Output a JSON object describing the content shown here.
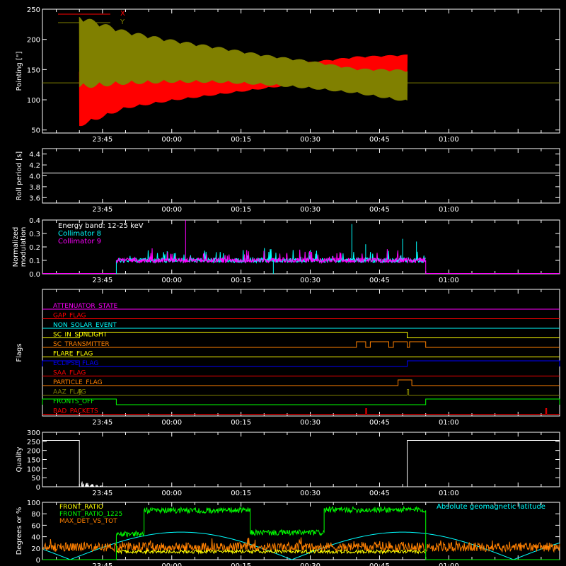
{
  "time_ticks": [
    "23:45",
    "00:00",
    "00:15",
    "00:30",
    "00:45",
    "01:00"
  ],
  "colors": {
    "axis": "#ffffff",
    "red": "#ff0000",
    "olive": "#808000",
    "cyan": "#00ffff",
    "magenta": "#ff00ff",
    "white": "#ffffff",
    "green": "#00ff00",
    "yellow": "#ffff00",
    "orange": "#ff8000",
    "blue": "#0000ff"
  },
  "chart_data": [
    {
      "id": "pointing",
      "type": "line",
      "ylabel": "Pointing [\"]",
      "ylim": [
        45,
        250
      ],
      "yticks": [
        "50",
        "100",
        "150",
        "200",
        "250"
      ],
      "legend": [
        {
          "name": "X",
          "color": "#ff0000"
        },
        {
          "name": "Y",
          "color": "#808000"
        }
      ],
      "x_span_min": [
        -28,
        84
      ],
      "baseline": 128,
      "active_span_min": [
        -20,
        51
      ],
      "series": [
        {
          "name": "X",
          "color": "#ff0000",
          "envelope_upper": [
            [
              -20,
              148
            ],
            [
              -10,
              137
            ],
            [
              0,
              138
            ],
            [
              10,
              142
            ],
            [
              20,
              150
            ],
            [
              30,
              163
            ],
            [
              40,
              172
            ],
            [
              51,
              175
            ]
          ],
          "envelope_lower": [
            [
              -20,
              55
            ],
            [
              -10,
              85
            ],
            [
              0,
              98
            ],
            [
              10,
              108
            ],
            [
              20,
              118
            ],
            [
              30,
              128
            ],
            [
              40,
              135
            ],
            [
              51,
              145
            ]
          ]
        },
        {
          "name": "Y",
          "color": "#808000",
          "envelope_upper": [
            [
              -20,
              240
            ],
            [
              -10,
              215
            ],
            [
              0,
              200
            ],
            [
              10,
              188
            ],
            [
              20,
              175
            ],
            [
              30,
              165
            ],
            [
              40,
              152
            ],
            [
              51,
              150
            ]
          ],
          "envelope_lower": [
            [
              -20,
              118
            ],
            [
              -10,
              125
            ],
            [
              0,
              128
            ],
            [
              10,
              128
            ],
            [
              20,
              124
            ],
            [
              30,
              118
            ],
            [
              40,
              110
            ],
            [
              51,
              96
            ]
          ]
        }
      ]
    },
    {
      "id": "roll",
      "type": "line",
      "ylabel": "Roll period [s]",
      "ylim": [
        3.5,
        4.5
      ],
      "yticks": [
        "3.6",
        "3.8",
        "4.0",
        "4.2",
        "4.4"
      ],
      "series": [
        {
          "name": "Roll period",
          "color": "#ffffff",
          "value": 4.05
        }
      ]
    },
    {
      "id": "modulation",
      "type": "line",
      "ylabel": "Normalized modulation",
      "ylim": [
        0,
        0.4
      ],
      "yticks": [
        "0.0",
        "0.1",
        "0.2",
        "0.3",
        "0.4"
      ],
      "annotations": [
        {
          "text": "Energy band: 12-25 keV",
          "color": "#ffffff"
        },
        {
          "text": "Collimator 8",
          "color": "#00ffff"
        },
        {
          "text": "Collimator 9",
          "color": "#ff00ff"
        }
      ],
      "active_span_min": [
        -12,
        55
      ],
      "typical_level": 0.1,
      "spikes": [
        [
          3,
          0.4
        ],
        [
          39,
          0.37
        ],
        [
          42,
          0.22
        ],
        [
          50,
          0.26
        ],
        [
          53,
          0.24
        ]
      ],
      "series": [
        {
          "name": "Collimator 8",
          "color": "#00ffff"
        },
        {
          "name": "Collimator 9",
          "color": "#ff00ff"
        }
      ]
    },
    {
      "id": "flags",
      "type": "line",
      "ylabel": "Flags",
      "flags": [
        {
          "name": "ATTENUATOR_STATE",
          "color": "#ff00ff",
          "high": []
        },
        {
          "name": "GAP_FLAG",
          "color": "#ff0000",
          "high": []
        },
        {
          "name": "NON_SOLAR_EVENT",
          "color": "#00ffff",
          "high": []
        },
        {
          "name": "SC_IN_SUNLIGHT",
          "color": "#ffff00",
          "high": [
            [
              -20,
              51
            ]
          ]
        },
        {
          "name": "SC_TRANSMITTER",
          "color": "#ff8000",
          "high": [
            [
              40,
              42
            ],
            [
              43,
              47
            ],
            [
              48,
              51
            ],
            [
              51.5,
              55
            ]
          ]
        },
        {
          "name": "FLARE_FLAG",
          "color": "#ffff00",
          "high": []
        },
        {
          "name": "ECLIPSE_FLAG",
          "color": "#0000ff",
          "high": [
            [
              -28,
              -20
            ],
            [
              51,
              84
            ]
          ]
        },
        {
          "name": "SAA_FLAG",
          "color": "#ff0000",
          "high": []
        },
        {
          "name": "PARTICLE_FLAG",
          "color": "#ff8000",
          "high": [
            [
              49,
              52
            ]
          ]
        },
        {
          "name": "AAZ_FLAG",
          "color": "#808000",
          "high": [
            [
              -20,
              -19.7
            ],
            [
              51,
              51.3
            ]
          ]
        },
        {
          "name": "FRONTS_OFF",
          "color": "#00ff00",
          "high": [
            [
              -28,
              -12
            ],
            [
              55,
              84
            ]
          ]
        },
        {
          "name": "BAD_PACKETS",
          "color": "#ff0000",
          "high": [
            [
              42,
              42.2
            ],
            [
              81,
              81.2
            ]
          ]
        }
      ]
    },
    {
      "id": "quality",
      "type": "line",
      "ylabel": "Quality",
      "ylim": [
        0,
        300
      ],
      "yticks": [
        "0",
        "50",
        "100",
        "150",
        "200",
        "250",
        "300"
      ],
      "series": [
        {
          "name": "Quality",
          "color": "#ffffff",
          "points": [
            [
              -28,
              255
            ],
            [
              -20,
              255
            ],
            [
              -20,
              0
            ],
            [
              51,
              0
            ],
            [
              51,
              255
            ],
            [
              84,
              255
            ]
          ]
        }
      ]
    },
    {
      "id": "front",
      "type": "line",
      "ylabel": "Degrees or %",
      "ylim": [
        0,
        100
      ],
      "yticks": [
        "0",
        "20",
        "40",
        "60",
        "80",
        "100"
      ],
      "legend": [
        {
          "name": "FRONT_RATIO",
          "color": "#ffff00"
        },
        {
          "name": "FRONT_RATIO_1225",
          "color": "#00ff00"
        },
        {
          "name": "MAX_DET_VS_TOT",
          "color": "#ff8000"
        }
      ],
      "annotations": [
        {
          "text": "Absolute geomagnetic latitude",
          "color": "#00ffff"
        }
      ],
      "series": [
        {
          "name": "FRONT_RATIO_1225",
          "color": "#00ff00",
          "levels": [
            [
              -28,
              -12,
              0
            ],
            [
              -12,
              -6,
              45
            ],
            [
              -6,
              17,
              86
            ],
            [
              17,
              33,
              47
            ],
            [
              33,
              55,
              87
            ],
            [
              55,
              84,
              0
            ]
          ]
        },
        {
          "name": "MAX_DET_VS_TOT",
          "color": "#ff8000",
          "level": 22
        },
        {
          "name": "FRONT_RATIO",
          "color": "#ffff00",
          "level": 14
        },
        {
          "name": "Absolute geomagnetic latitude",
          "color": "#00ffff",
          "period": 48,
          "max": 48,
          "min": 0,
          "first_zero": -22
        }
      ]
    }
  ]
}
